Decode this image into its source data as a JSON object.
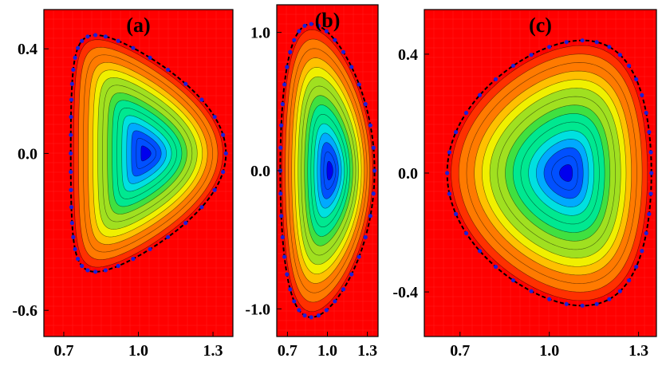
{
  "chart_data": [
    {
      "type": "heatmap",
      "panel_label": "(a)",
      "xlim": [
        0.62,
        1.38
      ],
      "ylim": [
        -0.7,
        0.55
      ],
      "x_ticks": [
        0.7,
        1.0,
        1.3
      ],
      "x_tick_labels": [
        "0.7",
        "1.0",
        "1.3"
      ],
      "y_ticks": [
        0.4,
        0.0,
        -0.6
      ],
      "y_tick_labels": [
        "0.4",
        "0.0",
        "-0.6"
      ],
      "boundary": {
        "r0": 1.04,
        "a": 0.3,
        "kappa": 1.45,
        "delta": 0.75
      },
      "axis_center": {
        "r": 1.03,
        "z": 0.0
      },
      "contour_levels": 15,
      "boundary_marker_count": 40,
      "colormap": [
        "#0000ee",
        "#0050ff",
        "#00aaff",
        "#00e0e0",
        "#00e890",
        "#40e040",
        "#a0e020",
        "#f0f000",
        "#ffc000",
        "#ff7a00",
        "#ff3000",
        "#ff0000"
      ],
      "boundary_line_color": "#000000",
      "boundary_marker_color": "#1f1fd6"
    },
    {
      "type": "heatmap",
      "panel_label": "(b)",
      "xlim": [
        0.62,
        1.38
      ],
      "ylim": [
        -1.2,
        1.2
      ],
      "x_ticks": [
        0.7,
        1.0,
        1.3
      ],
      "x_tick_labels": [
        "0.7",
        "1.0",
        "1.3"
      ],
      "y_ticks": [
        1.0,
        0.0,
        -1.0
      ],
      "y_tick_labels": [
        "1.0",
        "0.0",
        "-1.0"
      ],
      "boundary": {
        "r0": 1.0,
        "a": 0.34,
        "kappa": 3.0,
        "delta": 0.35
      },
      "axis_center": {
        "r": 1.02,
        "z": 0.0
      },
      "contour_levels": 15,
      "boundary_marker_count": 40,
      "colormap": [
        "#0000ee",
        "#0050ff",
        "#00aaff",
        "#00e0e0",
        "#00e890",
        "#40e040",
        "#a0e020",
        "#f0f000",
        "#ffc000",
        "#ff7a00",
        "#ff3000",
        "#ff0000"
      ],
      "boundary_line_color": "#000000",
      "boundary_marker_color": "#1f1fd6"
    },
    {
      "type": "heatmap",
      "panel_label": "(c)",
      "xlim": [
        0.58,
        1.36
      ],
      "ylim": [
        -0.55,
        0.55
      ],
      "x_ticks": [
        0.7,
        1.0,
        1.3
      ],
      "x_tick_labels": [
        "0.7",
        "1.0",
        "1.3"
      ],
      "y_ticks": [
        0.4,
        0.0,
        -0.4
      ],
      "y_tick_labels": [
        "0.4",
        "0.0",
        "-0.4"
      ],
      "boundary": {
        "r0": 1.0,
        "a": 0.33,
        "kappa": 1.3,
        "delta": -0.33
      },
      "axis_center": {
        "r": 1.06,
        "z": 0.0
      },
      "contour_levels": 15,
      "boundary_marker_count": 40,
      "colormap": [
        "#0000ee",
        "#0050ff",
        "#00aaff",
        "#00e0e0",
        "#00e890",
        "#40e040",
        "#a0e020",
        "#f0f000",
        "#ffc000",
        "#ff7a00",
        "#ff3000",
        "#ff0000"
      ],
      "boundary_line_color": "#000000",
      "boundary_marker_color": "#1f1fd6"
    }
  ]
}
